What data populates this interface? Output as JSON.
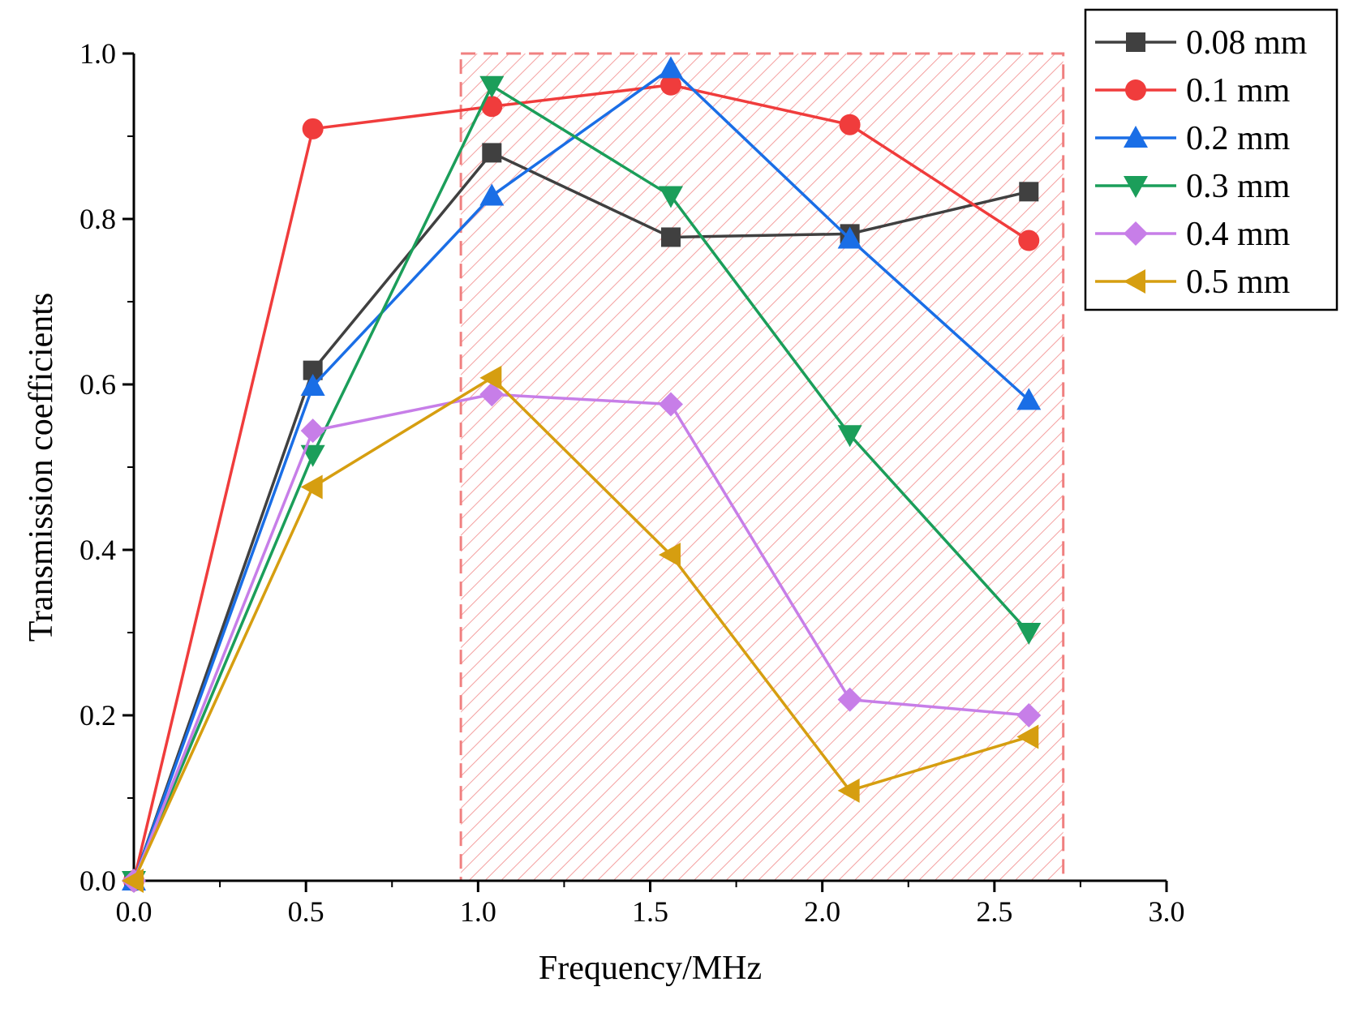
{
  "chart_data": {
    "type": "line",
    "title": "",
    "xlabel": "Frequency/MHz",
    "ylabel": "Transmission coefficients",
    "xlim": [
      0.0,
      3.0
    ],
    "ylim": [
      0.0,
      1.0
    ],
    "x_ticks": [
      "0.0",
      "0.5",
      "1.0",
      "1.5",
      "2.0",
      "2.5",
      "3.0"
    ],
    "y_ticks": [
      "0.0",
      "0.2",
      "0.4",
      "0.6",
      "0.8",
      "1.0"
    ],
    "x": [
      0.0,
      0.52,
      1.04,
      1.56,
      2.08,
      2.6
    ],
    "highlight_region": {
      "x_range": [
        0.95,
        2.7
      ],
      "y_range": [
        0.0,
        1.0
      ],
      "color": "#f08080",
      "style": "hatched dashed box"
    },
    "legend_position": "top-right outside",
    "series": [
      {
        "name": "0.08 mm",
        "color": "#404040",
        "marker": "square",
        "values": [
          0.0,
          0.617,
          0.88,
          0.778,
          0.782,
          0.833
        ]
      },
      {
        "name": "0.1 mm",
        "color": "#f03c3c",
        "marker": "circle",
        "values": [
          0.0,
          0.909,
          0.936,
          0.962,
          0.914,
          0.774
        ]
      },
      {
        "name": "0.2 mm",
        "color": "#1a6ee6",
        "marker": "triangle-up",
        "values": [
          0.0,
          0.598,
          0.828,
          0.982,
          0.776,
          0.581
        ]
      },
      {
        "name": "0.3 mm",
        "color": "#1b9e5a",
        "marker": "triangle-down",
        "values": [
          0.0,
          0.515,
          0.961,
          0.828,
          0.539,
          0.3
        ]
      },
      {
        "name": "0.4 mm",
        "color": "#c77ee8",
        "marker": "diamond",
        "values": [
          0.0,
          0.544,
          0.588,
          0.576,
          0.219,
          0.2
        ]
      },
      {
        "name": "0.5 mm",
        "color": "#d69e10",
        "marker": "triangle-left",
        "values": [
          0.0,
          0.476,
          0.608,
          0.394,
          0.109,
          0.174
        ]
      }
    ]
  }
}
